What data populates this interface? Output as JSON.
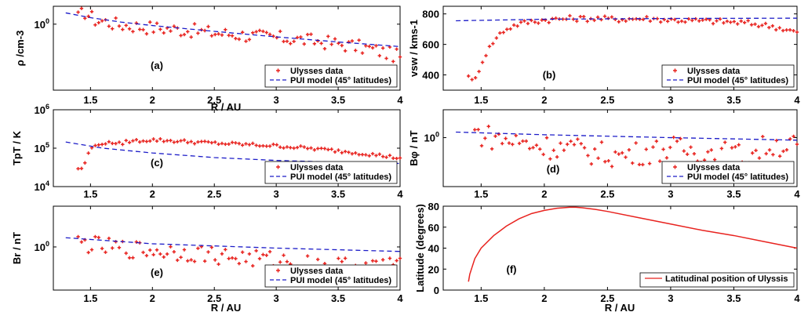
{
  "colors": {
    "data": "#e8231f",
    "model": "#1c1cc8",
    "axis": "#000000"
  },
  "chart_data": [
    {
      "panel": "(a)",
      "type": "scatter",
      "yscale": "log",
      "xlabel": "R / AU",
      "ylabel": "ρ /cm-3",
      "xlim": [
        1.2,
        4
      ],
      "ylim": [
        0.38,
        1.3
      ],
      "xticks": [
        "1.5",
        "2",
        "2.5",
        "3",
        "3.5",
        "4"
      ],
      "yticks": [
        "10^0"
      ],
      "legend": [
        "Ulysses data",
        "PUI model (45° latitudes)"
      ],
      "series": [
        {
          "name": "Ulysses data",
          "style": "points",
          "x": [
            1.4,
            1.45,
            1.5,
            1.55,
            1.6,
            1.7,
            1.8,
            2.0,
            2.25,
            2.5,
            2.75,
            3.0,
            3.25,
            3.5,
            3.75,
            4.0
          ],
          "y": [
            1.1,
            1.2,
            1.12,
            1.05,
            1.05,
            1.0,
            0.98,
            0.95,
            0.92,
            0.88,
            0.85,
            0.82,
            0.79,
            0.75,
            0.7,
            0.62
          ]
        },
        {
          "name": "PUI model (45° latitudes)",
          "style": "dashed",
          "x": [
            1.3,
            1.5,
            1.75,
            2.0,
            2.5,
            3.0,
            3.5,
            4.0
          ],
          "y": [
            1.18,
            1.1,
            1.03,
            0.98,
            0.9,
            0.83,
            0.77,
            0.72
          ]
        }
      ]
    },
    {
      "panel": "(b)",
      "type": "scatter",
      "yscale": "linear",
      "xlabel": "",
      "ylabel": "vsw / kms-1",
      "xlim": [
        1.2,
        4
      ],
      "ylim": [
        300,
        850
      ],
      "xticks": [
        "1.5",
        "2",
        "2.5",
        "3",
        "3.5",
        "4"
      ],
      "yticks": [
        "400",
        "600",
        "800"
      ],
      "legend": [
        "Ulysses data",
        "PUI model (45° latitudes)"
      ],
      "series": [
        {
          "name": "Ulysses data",
          "style": "points",
          "x": [
            1.4,
            1.43,
            1.46,
            1.5,
            1.54,
            1.58,
            1.62,
            1.66,
            1.7,
            1.75,
            1.8,
            1.9,
            2.0,
            2.2,
            2.4,
            2.6,
            2.8,
            3.0,
            3.2,
            3.4,
            3.6,
            3.8,
            4.0
          ],
          "y": [
            400,
            360,
            380,
            470,
            540,
            600,
            640,
            680,
            700,
            720,
            735,
            750,
            760,
            770,
            770,
            765,
            770,
            760,
            755,
            750,
            740,
            720,
            680
          ]
        },
        {
          "name": "PUI model (45° latitudes)",
          "style": "dashed",
          "x": [
            1.3,
            2.0,
            3.0,
            4.0
          ],
          "y": [
            755,
            765,
            770,
            772
          ]
        }
      ]
    },
    {
      "panel": "(c)",
      "type": "scatter",
      "yscale": "log",
      "xlabel": "",
      "ylabel": "TpT / K",
      "xlim": [
        1.2,
        4
      ],
      "ylim": [
        10000,
        1000000
      ],
      "xticks": [
        "1.5",
        "2",
        "2.5",
        "3",
        "3.5",
        "4"
      ],
      "yticks": [
        "10^4",
        "10^5",
        "10^6"
      ],
      "legend": [
        "Ulysses data",
        "PUI model (45° latitudes)"
      ],
      "series": [
        {
          "name": "Ulysses data",
          "style": "points",
          "x": [
            1.4,
            1.43,
            1.46,
            1.5,
            1.55,
            1.6,
            1.65,
            1.7,
            1.8,
            2.0,
            2.25,
            2.5,
            2.75,
            3.0,
            3.25,
            3.5,
            3.75,
            4.0
          ],
          "y": [
            30000,
            28000,
            45000,
            90000,
            140000,
            110000,
            160000,
            120000,
            150000,
            165000,
            150000,
            135000,
            125000,
            115000,
            100000,
            85000,
            70000,
            55000
          ]
        },
        {
          "name": "PUI model (45° latitudes)",
          "style": "dashed",
          "x": [
            1.3,
            1.6,
            2.0,
            2.5,
            3.0,
            3.5,
            4.0
          ],
          "y": [
            145000,
            100000,
            75000,
            57000,
            48000,
            43000,
            40000
          ]
        }
      ]
    },
    {
      "panel": "(d)",
      "type": "scatter",
      "yscale": "log",
      "xlabel": "",
      "ylabel": "Bφ / nT",
      "xlim": [
        1.2,
        4
      ],
      "ylim": [
        0.2,
        2.5
      ],
      "xticks": [
        "1.5",
        "2",
        "2.5",
        "3",
        "3.5",
        "4"
      ],
      "yticks": [
        "10^0"
      ],
      "legend": [
        "Ulysses data",
        "PUI model (45° latitudes)"
      ],
      "series": [
        {
          "name": "Ulysses data",
          "style": "points",
          "x": [
            1.45,
            1.5,
            1.6,
            1.8,
            2.0,
            2.2,
            2.4,
            2.6,
            2.8,
            3.0,
            3.2,
            3.4,
            3.6,
            3.8,
            4.0
          ],
          "y": [
            1.2,
            1.1,
            1.0,
            0.85,
            0.75,
            0.7,
            0.6,
            0.55,
            0.62,
            0.7,
            0.65,
            0.6,
            0.55,
            0.8,
            0.75
          ]
        },
        {
          "name": "PUI model (45° latitudes)",
          "style": "dashed",
          "x": [
            1.3,
            2.0,
            3.0,
            4.0
          ],
          "y": [
            1.2,
            1.1,
            1.0,
            0.92
          ]
        }
      ]
    },
    {
      "panel": "(e)",
      "type": "scatter",
      "yscale": "log",
      "xlabel": "R / AU",
      "ylabel": "Br / nT",
      "xlim": [
        1.2,
        4
      ],
      "ylim": [
        0.15,
        6
      ],
      "xticks": [
        "1.5",
        "2",
        "2.5",
        "3",
        "3.5",
        "4"
      ],
      "yticks": [
        "10^0"
      ],
      "legend": [
        "Ulysses data",
        "PUI model (45° latitudes)"
      ],
      "series": [
        {
          "name": "Ulysses data",
          "style": "points",
          "x": [
            1.4,
            1.5,
            1.6,
            1.7,
            1.8,
            2.0,
            2.2,
            2.4,
            2.6,
            2.8,
            3.0,
            3.2,
            3.4,
            3.6,
            3.8,
            4.0
          ],
          "y": [
            1.2,
            1.1,
            1.0,
            0.95,
            0.9,
            0.85,
            0.8,
            0.75,
            0.65,
            0.6,
            0.55,
            0.5,
            0.45,
            0.42,
            0.4,
            0.55
          ]
        },
        {
          "name": "PUI model (45° latitudes)",
          "style": "dashed",
          "x": [
            1.3,
            2.0,
            3.0,
            4.0
          ],
          "y": [
            1.5,
            1.15,
            0.95,
            0.82
          ]
        }
      ]
    },
    {
      "panel": "(f)",
      "type": "line",
      "yscale": "linear",
      "xlabel": "R / AU",
      "ylabel": "Latitude (degrees)",
      "xlim": [
        1.2,
        4
      ],
      "ylim": [
        0,
        80
      ],
      "xticks": [
        "1.5",
        "2",
        "2.5",
        "3",
        "3.5",
        "4"
      ],
      "yticks": [
        "0",
        "20",
        "40",
        "60",
        "80"
      ],
      "legend": [
        "Latitudinal position of Ulyssis"
      ],
      "series": [
        {
          "name": "Latitudinal position of Ulyssis",
          "style": "solid",
          "x": [
            1.4,
            1.41,
            1.45,
            1.5,
            1.6,
            1.7,
            1.8,
            1.9,
            2.0,
            2.1,
            2.2,
            2.25,
            2.3,
            2.4,
            2.5,
            2.75,
            3.0,
            3.25,
            3.5,
            3.75,
            4.0
          ],
          "y": [
            8,
            15,
            30,
            40,
            52,
            61,
            68,
            73,
            76,
            78,
            79,
            79,
            78.5,
            77,
            75,
            69,
            63,
            57,
            52,
            46,
            40
          ]
        }
      ]
    }
  ]
}
